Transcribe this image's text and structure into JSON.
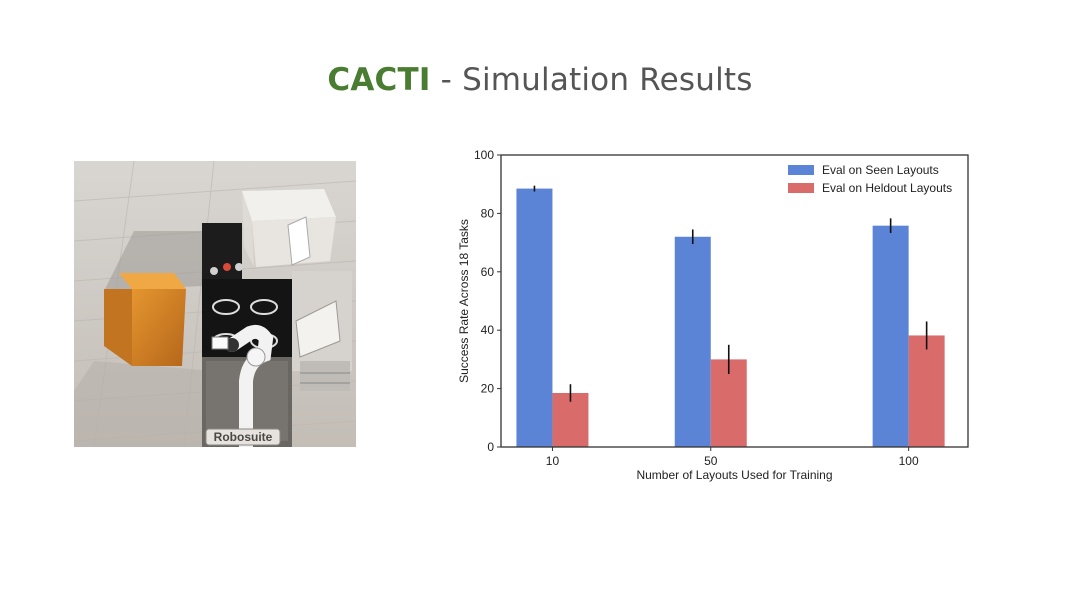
{
  "slide": {
    "title_accent": "CACTI",
    "title_rest": " - Simulation Results"
  },
  "image": {
    "watermark": "Robosuite"
  },
  "chart_data": {
    "type": "bar",
    "title": "",
    "xlabel": "Number of Layouts Used for Training",
    "ylabel": "Success Rate Across 18 Tasks",
    "ylim": [
      0,
      100
    ],
    "yticks": [
      0,
      20,
      40,
      60,
      80,
      100
    ],
    "categories": [
      "10",
      "50",
      "100"
    ],
    "x_positions": [
      10,
      50,
      100
    ],
    "xlim": [
      -3,
      115
    ],
    "grid": false,
    "legend_position": "top-right",
    "series": [
      {
        "name": "Eval on Seen Layouts",
        "color": "#5b84d6",
        "values": [
          88.5,
          72,
          75.8
        ],
        "errors": [
          1,
          2.5,
          2.5
        ]
      },
      {
        "name": "Eval on Heldout Layouts",
        "color": "#d96b6b",
        "values": [
          18.5,
          30,
          38.2
        ],
        "errors": [
          3,
          5,
          4.8
        ]
      }
    ]
  }
}
